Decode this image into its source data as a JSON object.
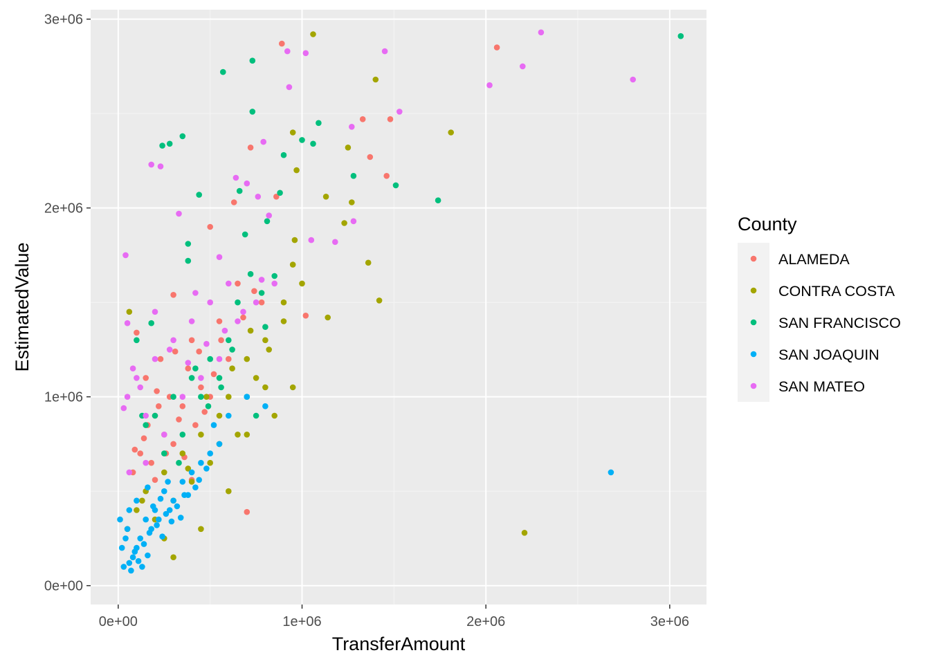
{
  "colors": {
    "panel_bg": "#EBEBEB",
    "grid_major": "#FFFFFF",
    "grid_minor": "#F5F5F5",
    "tick": "#333333",
    "legend_key_bg": "#F2F2F2"
  },
  "chart_data": {
    "type": "scatter",
    "title": "",
    "xlabel": "TransferAmount",
    "ylabel": "EstimatedValue",
    "xlim": [
      -150000,
      3200000
    ],
    "ylim": [
      -100000,
      3050000
    ],
    "x_ticks": [
      0,
      1000000,
      2000000,
      3000000
    ],
    "x_tick_labels": [
      "0e+00",
      "1e+06",
      "2e+06",
      "3e+06"
    ],
    "y_ticks": [
      0,
      1000000,
      2000000,
      3000000
    ],
    "y_tick_labels": [
      "0e+00",
      "1e+06",
      "2e+06",
      "3e+06"
    ],
    "grid": true,
    "legend": {
      "title": "County",
      "position": "right"
    },
    "series": [
      {
        "name": "ALAMEDA",
        "color": "#F8766D",
        "points": [
          [
            890000,
            2870000
          ],
          [
            2060000,
            2850000
          ],
          [
            1330000,
            2470000
          ],
          [
            1480000,
            2470000
          ],
          [
            720000,
            2320000
          ],
          [
            1370000,
            2270000
          ],
          [
            1460000,
            2170000
          ],
          [
            860000,
            2060000
          ],
          [
            630000,
            2030000
          ],
          [
            500000,
            1900000
          ],
          [
            1020000,
            1430000
          ],
          [
            300000,
            1540000
          ],
          [
            100000,
            1340000
          ],
          [
            700000,
            390000
          ],
          [
            150000,
            1100000
          ],
          [
            230000,
            1200000
          ],
          [
            400000,
            1300000
          ],
          [
            650000,
            1600000
          ],
          [
            550000,
            1400000
          ],
          [
            780000,
            1500000
          ],
          [
            200000,
            900000
          ],
          [
            350000,
            950000
          ],
          [
            450000,
            1050000
          ],
          [
            250000,
            800000
          ],
          [
            120000,
            700000
          ],
          [
            300000,
            750000
          ],
          [
            420000,
            850000
          ],
          [
            500000,
            1000000
          ],
          [
            180000,
            650000
          ],
          [
            600000,
            1200000
          ],
          [
            80000,
            600000
          ],
          [
            280000,
            1000000
          ],
          [
            380000,
            1150000
          ],
          [
            160000,
            850000
          ],
          [
            220000,
            950000
          ],
          [
            330000,
            880000
          ],
          [
            470000,
            920000
          ],
          [
            520000,
            1120000
          ],
          [
            260000,
            700000
          ],
          [
            140000,
            780000
          ],
          [
            360000,
            680000
          ],
          [
            90000,
            720000
          ],
          [
            400000,
            560000
          ],
          [
            200000,
            560000
          ],
          [
            310000,
            1240000
          ],
          [
            560000,
            1300000
          ],
          [
            680000,
            1420000
          ],
          [
            740000,
            1560000
          ],
          [
            210000,
            1030000
          ],
          [
            440000,
            1240000
          ]
        ]
      },
      {
        "name": "CONTRA COSTA",
        "color": "#A3A500",
        "points": [
          [
            1060000,
            2920000
          ],
          [
            1400000,
            2680000
          ],
          [
            1810000,
            2400000
          ],
          [
            950000,
            2400000
          ],
          [
            1250000,
            2320000
          ],
          [
            970000,
            2200000
          ],
          [
            1130000,
            2060000
          ],
          [
            1270000,
            2030000
          ],
          [
            1230000,
            1920000
          ],
          [
            960000,
            1830000
          ],
          [
            1360000,
            1710000
          ],
          [
            1420000,
            1510000
          ],
          [
            1140000,
            1420000
          ],
          [
            2210000,
            280000
          ],
          [
            950000,
            1700000
          ],
          [
            900000,
            1500000
          ],
          [
            800000,
            1300000
          ],
          [
            700000,
            1200000
          ],
          [
            600000,
            1000000
          ],
          [
            550000,
            900000
          ],
          [
            450000,
            800000
          ],
          [
            350000,
            700000
          ],
          [
            250000,
            600000
          ],
          [
            150000,
            500000
          ],
          [
            100000,
            400000
          ],
          [
            50000,
            300000
          ],
          [
            950000,
            1050000
          ],
          [
            850000,
            900000
          ],
          [
            750000,
            1100000
          ],
          [
            650000,
            800000
          ],
          [
            500000,
            650000
          ],
          [
            400000,
            550000
          ],
          [
            300000,
            450000
          ],
          [
            200000,
            350000
          ],
          [
            60000,
            1450000
          ],
          [
            450000,
            300000
          ],
          [
            250000,
            250000
          ],
          [
            300000,
            150000
          ],
          [
            600000,
            500000
          ],
          [
            700000,
            800000
          ],
          [
            800000,
            1050000
          ],
          [
            900000,
            1400000
          ],
          [
            1000000,
            1600000
          ],
          [
            550000,
            750000
          ],
          [
            380000,
            620000
          ],
          [
            130000,
            450000
          ],
          [
            480000,
            1000000
          ],
          [
            620000,
            1150000
          ],
          [
            720000,
            1350000
          ],
          [
            820000,
            1250000
          ]
        ]
      },
      {
        "name": "SAN FRANCISCO",
        "color": "#00BF7D",
        "points": [
          [
            3060000,
            2910000
          ],
          [
            730000,
            2780000
          ],
          [
            570000,
            2720000
          ],
          [
            1280000,
            2170000
          ],
          [
            730000,
            2510000
          ],
          [
            1090000,
            2450000
          ],
          [
            1000000,
            2360000
          ],
          [
            1060000,
            2340000
          ],
          [
            900000,
            2280000
          ],
          [
            350000,
            2380000
          ],
          [
            280000,
            2340000
          ],
          [
            240000,
            2330000
          ],
          [
            1510000,
            2120000
          ],
          [
            1740000,
            2040000
          ],
          [
            880000,
            2080000
          ],
          [
            440000,
            2070000
          ],
          [
            660000,
            2090000
          ],
          [
            380000,
            1810000
          ],
          [
            380000,
            1720000
          ],
          [
            690000,
            1860000
          ],
          [
            810000,
            1930000
          ],
          [
            800000,
            1370000
          ],
          [
            850000,
            1640000
          ],
          [
            650000,
            1500000
          ],
          [
            600000,
            1300000
          ],
          [
            500000,
            1200000
          ],
          [
            400000,
            1100000
          ],
          [
            300000,
            1000000
          ],
          [
            200000,
            900000
          ],
          [
            150000,
            850000
          ],
          [
            100000,
            1300000
          ],
          [
            450000,
            1000000
          ],
          [
            550000,
            1100000
          ],
          [
            700000,
            1000000
          ],
          [
            350000,
            800000
          ],
          [
            250000,
            700000
          ],
          [
            750000,
            900000
          ],
          [
            780000,
            1550000
          ],
          [
            180000,
            1390000
          ],
          [
            490000,
            950000
          ],
          [
            620000,
            1250000
          ],
          [
            330000,
            650000
          ],
          [
            420000,
            1150000
          ],
          [
            130000,
            900000
          ],
          [
            720000,
            1650000
          ],
          [
            560000,
            1050000
          ]
        ]
      },
      {
        "name": "SAN JOAQUIN",
        "color": "#00B0F6",
        "points": [
          [
            2680000,
            600000
          ],
          [
            50000,
            300000
          ],
          [
            100000,
            200000
          ],
          [
            150000,
            350000
          ],
          [
            200000,
            400000
          ],
          [
            250000,
            500000
          ],
          [
            300000,
            450000
          ],
          [
            350000,
            550000
          ],
          [
            400000,
            600000
          ],
          [
            450000,
            650000
          ],
          [
            500000,
            700000
          ],
          [
            550000,
            750000
          ],
          [
            600000,
            900000
          ],
          [
            700000,
            1000000
          ],
          [
            800000,
            950000
          ],
          [
            80000,
            150000
          ],
          [
            120000,
            250000
          ],
          [
            180000,
            300000
          ],
          [
            220000,
            350000
          ],
          [
            280000,
            400000
          ],
          [
            30000,
            100000
          ],
          [
            60000,
            120000
          ],
          [
            90000,
            180000
          ],
          [
            140000,
            220000
          ],
          [
            170000,
            280000
          ],
          [
            210000,
            320000
          ],
          [
            260000,
            380000
          ],
          [
            320000,
            420000
          ],
          [
            380000,
            480000
          ],
          [
            420000,
            520000
          ],
          [
            20000,
            200000
          ],
          [
            40000,
            250000
          ],
          [
            70000,
            80000
          ],
          [
            110000,
            130000
          ],
          [
            160000,
            160000
          ],
          [
            130000,
            100000
          ],
          [
            240000,
            260000
          ],
          [
            290000,
            340000
          ],
          [
            340000,
            360000
          ],
          [
            190000,
            420000
          ],
          [
            360000,
            480000
          ],
          [
            440000,
            560000
          ],
          [
            480000,
            620000
          ],
          [
            230000,
            460000
          ],
          [
            270000,
            550000
          ],
          [
            10000,
            350000
          ],
          [
            60000,
            400000
          ],
          [
            100000,
            450000
          ],
          [
            160000,
            520000
          ],
          [
            520000,
            850000
          ]
        ]
      },
      {
        "name": "SAN MATEO",
        "color": "#E76BF3",
        "points": [
          [
            2300000,
            2930000
          ],
          [
            1450000,
            2830000
          ],
          [
            1020000,
            2820000
          ],
          [
            920000,
            2830000
          ],
          [
            2200000,
            2750000
          ],
          [
            2800000,
            2680000
          ],
          [
            2020000,
            2650000
          ],
          [
            930000,
            2640000
          ],
          [
            1530000,
            2510000
          ],
          [
            1270000,
            2430000
          ],
          [
            790000,
            2350000
          ],
          [
            180000,
            2230000
          ],
          [
            230000,
            2220000
          ],
          [
            640000,
            2160000
          ],
          [
            700000,
            2130000
          ],
          [
            760000,
            2060000
          ],
          [
            330000,
            1970000
          ],
          [
            820000,
            1960000
          ],
          [
            1280000,
            1930000
          ],
          [
            1050000,
            1830000
          ],
          [
            1180000,
            1820000
          ],
          [
            40000,
            1750000
          ],
          [
            550000,
            1740000
          ],
          [
            200000,
            1450000
          ],
          [
            50000,
            1390000
          ],
          [
            600000,
            1600000
          ],
          [
            500000,
            1500000
          ],
          [
            400000,
            1400000
          ],
          [
            300000,
            1300000
          ],
          [
            200000,
            1200000
          ],
          [
            100000,
            1100000
          ],
          [
            50000,
            1000000
          ],
          [
            150000,
            900000
          ],
          [
            250000,
            800000
          ],
          [
            350000,
            1000000
          ],
          [
            450000,
            1100000
          ],
          [
            550000,
            1200000
          ],
          [
            650000,
            1400000
          ],
          [
            750000,
            1500000
          ],
          [
            850000,
            1600000
          ],
          [
            30000,
            940000
          ],
          [
            80000,
            1150000
          ],
          [
            120000,
            1050000
          ],
          [
            280000,
            1250000
          ],
          [
            380000,
            1180000
          ],
          [
            480000,
            1280000
          ],
          [
            580000,
            1350000
          ],
          [
            680000,
            1450000
          ],
          [
            780000,
            1620000
          ],
          [
            150000,
            650000
          ],
          [
            60000,
            600000
          ],
          [
            420000,
            1550000
          ]
        ]
      }
    ]
  }
}
